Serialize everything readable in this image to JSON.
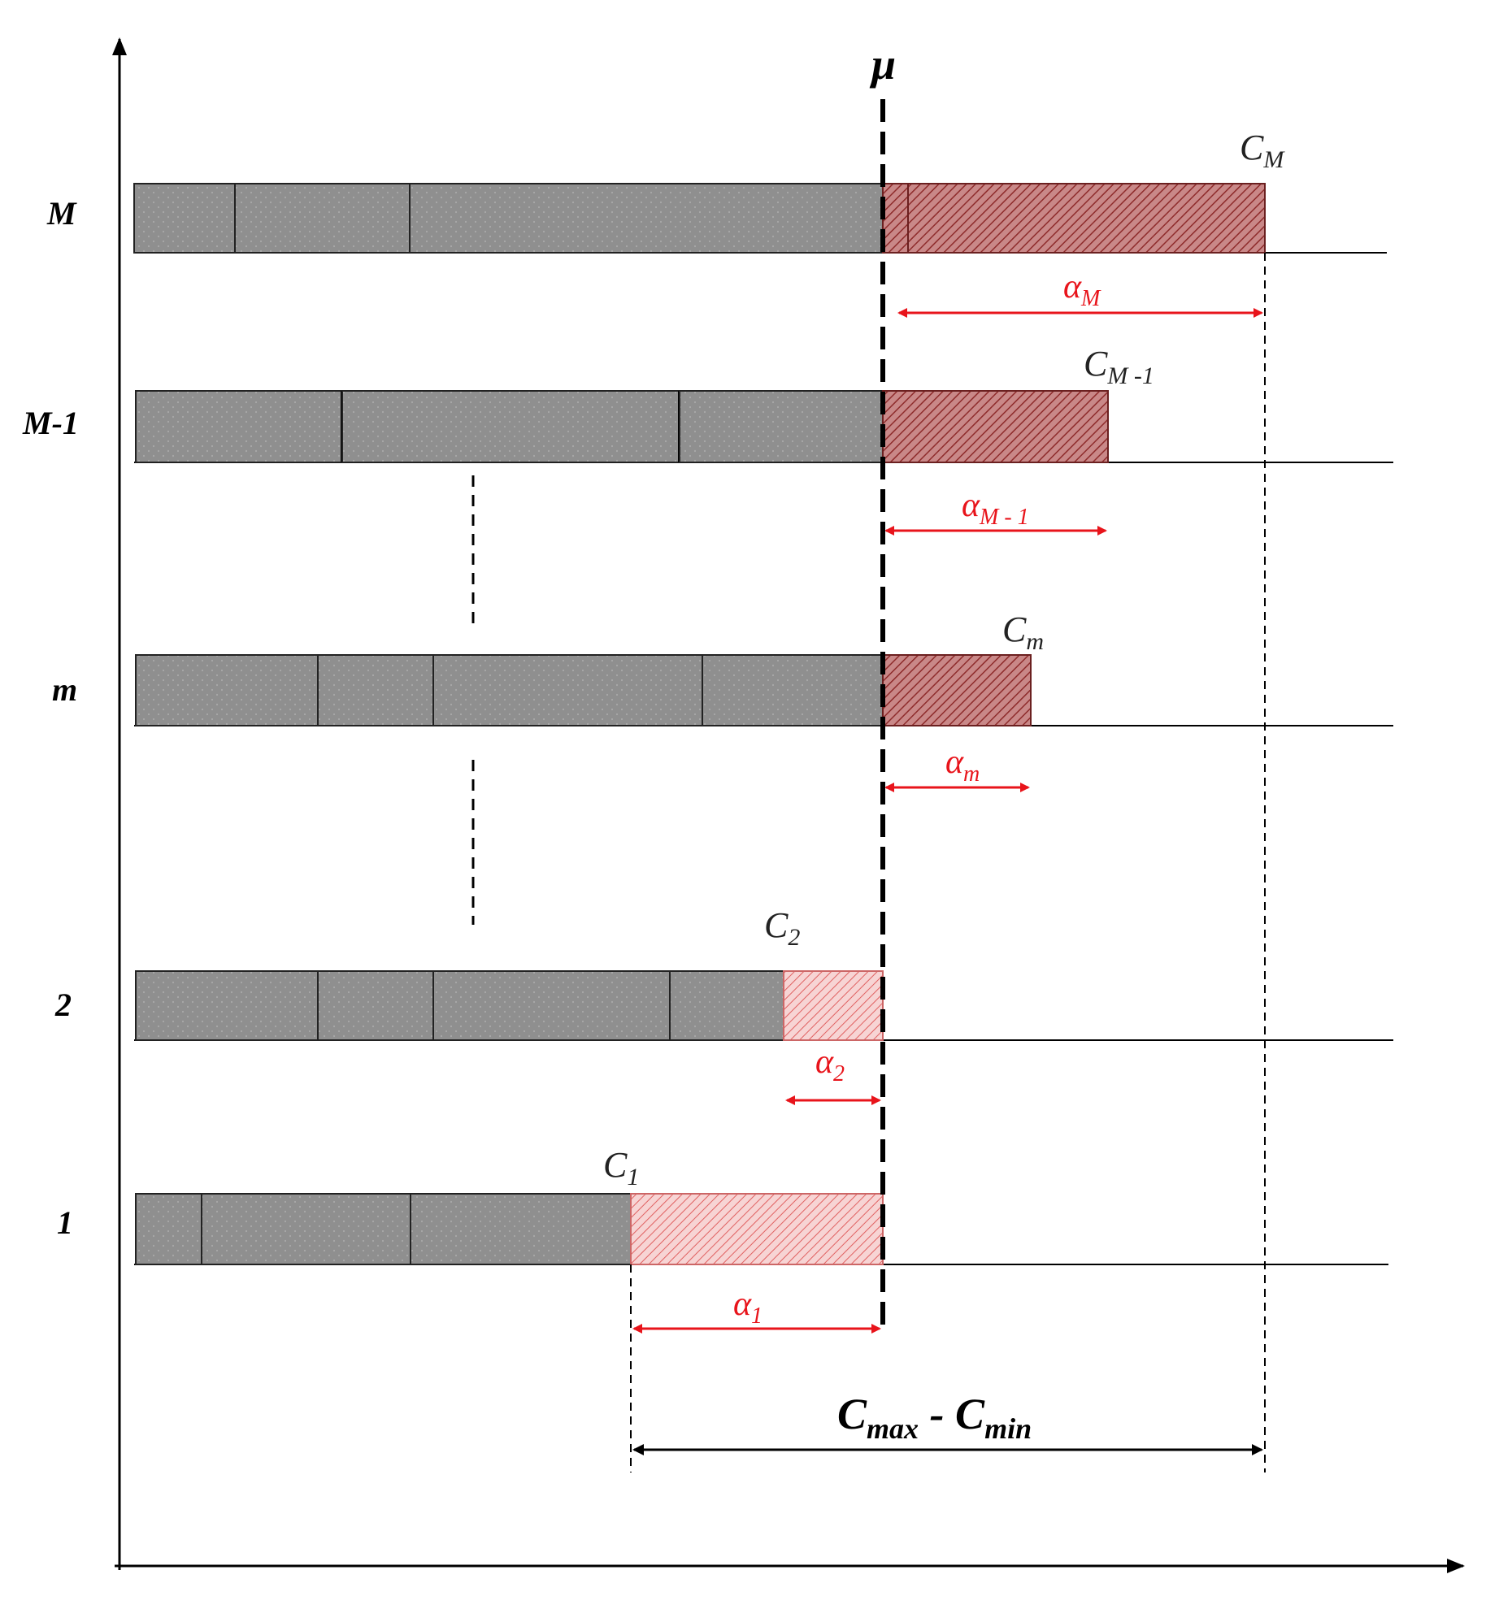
{
  "colors": {
    "job_fill": "#8f8f8f",
    "excess_fill": "#c98888",
    "excess_fill_light": "#f3c8c8",
    "hatch_dark": "#8e2b2b",
    "hatch_light": "#e06060",
    "arrow_red": "#e8141b",
    "black": "#000000"
  },
  "mu_label": "μ",
  "range_label": {
    "base_left": "C",
    "sub_left": "max",
    "dash": " - ",
    "base_right": "C",
    "sub_right": "min"
  },
  "rows": [
    {
      "label": "M",
      "c_base": "C",
      "c_sub": "M",
      "alpha_base": "α",
      "alpha_sub": "M"
    },
    {
      "label": "M-1",
      "c_base": "C",
      "c_sub": "M -1",
      "alpha_base": "α",
      "alpha_sub": "M - 1"
    },
    {
      "label": "m",
      "c_base": "C",
      "c_sub": "m",
      "alpha_base": "α",
      "alpha_sub": "m"
    },
    {
      "label": "2",
      "c_base": "C",
      "c_sub": "2",
      "alpha_base": "α",
      "alpha_sub": "2"
    },
    {
      "label": "1",
      "c_base": "C",
      "c_sub": "1",
      "alpha_base": "α",
      "alpha_sub": "1"
    }
  ]
}
